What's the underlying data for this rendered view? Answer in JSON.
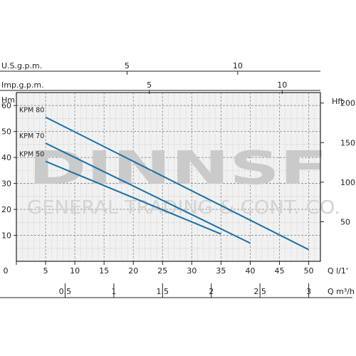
{
  "chart_data": {
    "type": "line",
    "x_axis_bottom_primary": {
      "unit_label": "Q  l/1'",
      "ticks": [
        0,
        5,
        10,
        15,
        20,
        25,
        30,
        35,
        40,
        45,
        50
      ],
      "range": [
        0,
        52
      ]
    },
    "x_axis_bottom_secondary": {
      "unit_label": "Q  m³/h",
      "ticks": [
        "0.5",
        "1",
        "1.5",
        "2",
        "2.5",
        "3"
      ]
    },
    "x_axis_top_usgpm": {
      "unit_label": "U.S.g.p.m.",
      "ticks": [
        "5",
        "10"
      ]
    },
    "x_axis_top_impgpm": {
      "unit_label": "Imp.g.p.m.",
      "ticks": [
        "5",
        "10"
      ]
    },
    "y_axis_left": {
      "unit_label": "Hm",
      "ticks": [
        "10",
        "20",
        "30",
        "40",
        "50",
        "60"
      ],
      "range": [
        0,
        65
      ]
    },
    "y_axis_right": {
      "unit_label": "Hft",
      "ticks": [
        "50",
        "100",
        "150",
        "200"
      ]
    },
    "grid": true,
    "series": [
      {
        "name": "KPM 80",
        "x": [
          5,
          50
        ],
        "y": [
          55.5,
          4.5
        ]
      },
      {
        "name": "KPM 70",
        "x": [
          5,
          40
        ],
        "y": [
          45.5,
          7
        ]
      },
      {
        "name": "KPM 50",
        "x": [
          5,
          35
        ],
        "y": [
          38.5,
          10.5
        ]
      }
    ],
    "line_color": "#1a6ea8"
  },
  "watermark": {
    "logo": "DINNSF",
    "line2": "GENERAL TRADING & CONT. CO."
  }
}
